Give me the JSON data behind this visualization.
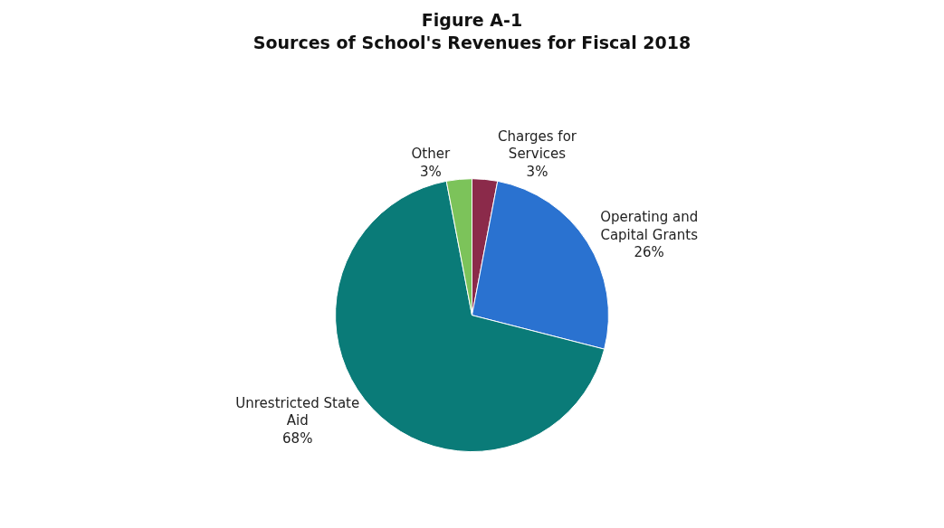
{
  "chart_data": {
    "type": "pie",
    "title": "Figure A-1",
    "subtitle": "Sources of School's Revenues for Fiscal 2018",
    "categories": [
      "Charges for Services",
      "Operating and Capital Grants",
      "Unrestricted State Aid",
      "Other"
    ],
    "values": [
      3,
      26,
      68,
      3
    ],
    "value_labels": [
      "3%",
      "26%",
      "68%",
      "3%"
    ],
    "colors": [
      "#8b2a4a",
      "#2a72d0",
      "#0a7b78",
      "#7cc35a"
    ],
    "legend": false
  }
}
